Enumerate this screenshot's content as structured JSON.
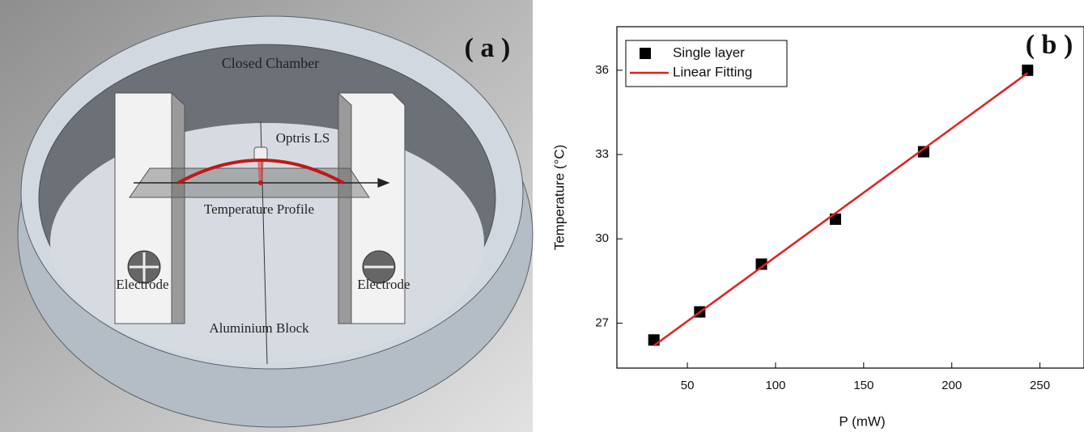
{
  "diagram": {
    "label": "( a )",
    "chamber": "Closed Chamber",
    "sensor": "Optris LS",
    "profile": "Temperature Profile",
    "electrode_left": "Electrode",
    "electrode_right": "Electrode",
    "block": "Aluminium Block"
  },
  "chart_data": {
    "type": "scatter",
    "label": "( b )",
    "x_label": "P (mW)",
    "y_label": "Temperature (°C)",
    "series": [
      {
        "name": "Single layer",
        "type": "scatter",
        "color": "#000000",
        "x": [
          31,
          57,
          92,
          134,
          184,
          243
        ],
        "values": [
          26.4,
          27.4,
          29.1,
          30.7,
          33.1,
          36.0
        ]
      },
      {
        "name": "Linear Fitting",
        "type": "line",
        "color": "#e02020",
        "x": [
          31,
          243
        ],
        "values": [
          26.2,
          35.9
        ]
      }
    ],
    "xlim": [
      10,
      275
    ],
    "ylim": [
      25.4,
      37.55
    ],
    "xticks": [
      50,
      100,
      150,
      200,
      250
    ],
    "yticks": [
      27,
      30,
      33,
      36
    ],
    "legend": "upper left"
  }
}
